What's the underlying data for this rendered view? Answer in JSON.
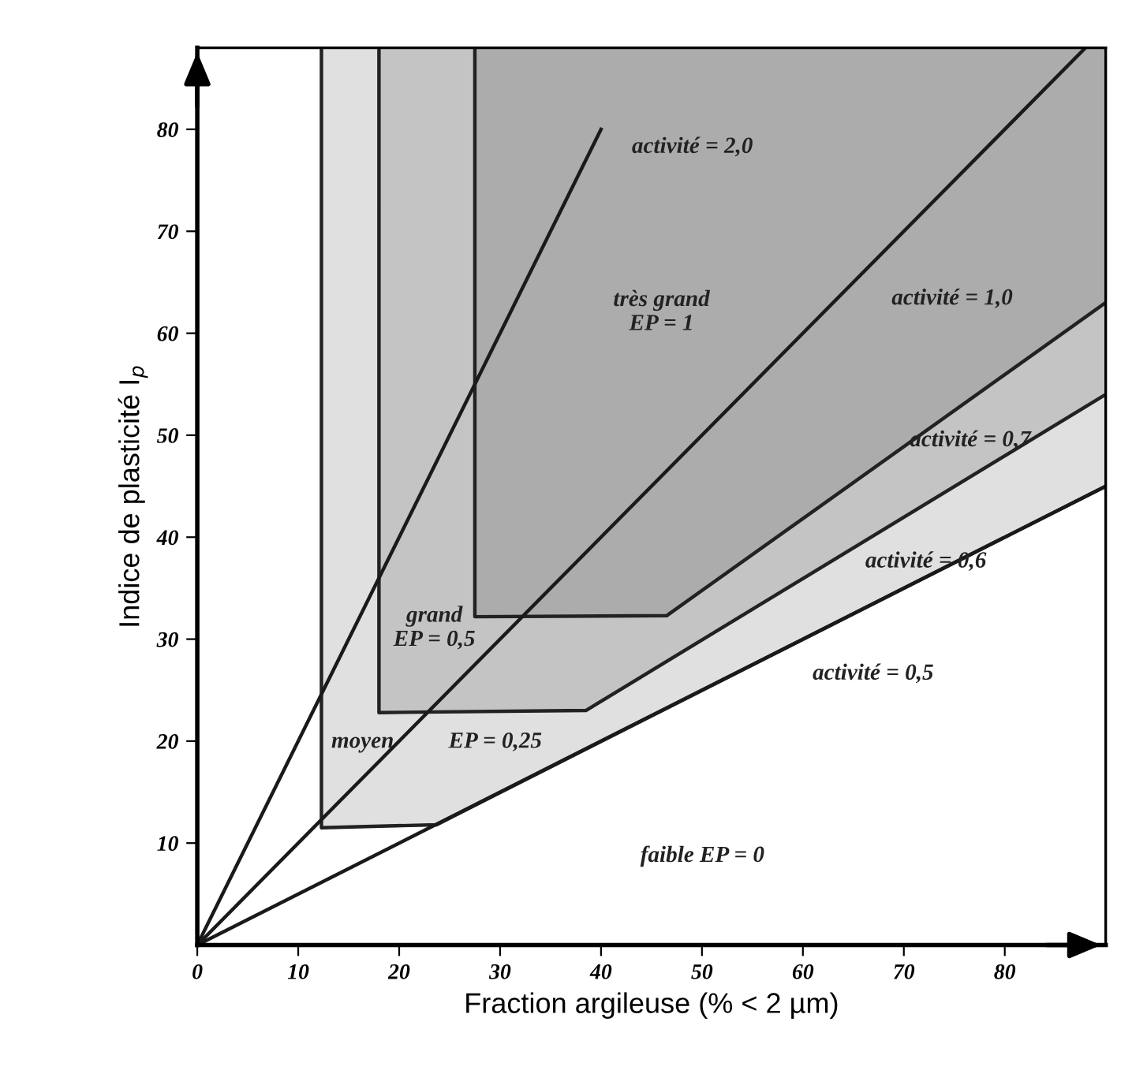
{
  "chart_data": {
    "type": "line",
    "xlabel": "Fraction argileuse (% < 2 µm)",
    "ylabel": "Indice de plasticité I$_{p}$",
    "xlim": [
      0,
      90
    ],
    "ylim": [
      0,
      88
    ],
    "xticks": [
      0,
      10,
      20,
      30,
      40,
      50,
      60,
      70,
      80
    ],
    "yticks": [
      10,
      20,
      30,
      40,
      50,
      60,
      70,
      80
    ],
    "marker": "none",
    "line_style": "solid",
    "series": [
      {
        "x": [
          12.3,
          12.3,
          23.7,
          90
        ],
        "values": [
          88,
          11.5,
          11.8,
          45
        ],
        "color": "#222222"
      },
      {
        "x": [
          18,
          18,
          38.5,
          90
        ],
        "values": [
          88,
          22.8,
          23,
          54
        ],
        "color": "#222222"
      },
      {
        "x": [
          27.5,
          27.5,
          46.5,
          90
        ],
        "values": [
          88,
          32.2,
          32.3,
          63
        ],
        "color": "#222222"
      },
      {
        "x": [
          0,
          40
        ],
        "values": [
          0,
          80
        ],
        "color": "#1a1a1a"
      },
      {
        "x": [
          0,
          88
        ],
        "values": [
          0,
          88
        ],
        "color": "#1a1a1a"
      },
      {
        "x": [
          0,
          90
        ],
        "values": [
          0,
          45
        ],
        "color": "#1a1a1a"
      }
    ],
    "annotations": [
      "activité = 2,0",
      "activité = 1,0",
      "activité = 0,7",
      "activité = 0,6",
      "activité = 0,5",
      "très grand\nEP = 1",
      "grand\nEP = 0,5",
      "moyen",
      "EP = 0,25",
      "faible EP = 0"
    ]
  }
}
